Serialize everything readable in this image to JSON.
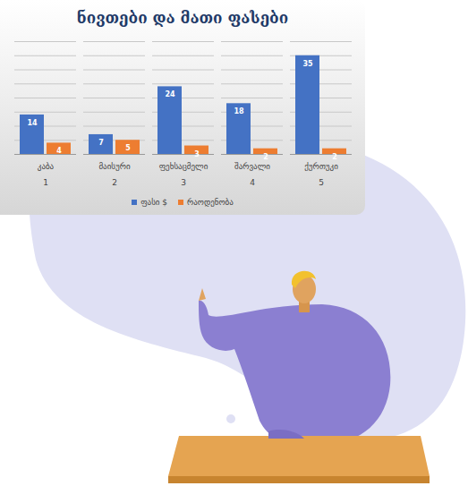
{
  "chart_data": {
    "type": "bar",
    "title": "ნივთები და მათი ფასები",
    "categories": [
      "კაბა",
      "მაისური",
      "ფეხსაცმელი",
      "შარვალი",
      "ქურთუკი"
    ],
    "category_index": [
      1,
      2,
      3,
      4,
      5
    ],
    "series": [
      {
        "name": "ფასი $",
        "color": "#4472c4",
        "values": [
          14,
          7,
          24,
          18,
          35
        ]
      },
      {
        "name": "რაოდენობა",
        "color": "#ed7d31",
        "values": [
          4,
          5,
          3,
          2,
          2
        ]
      }
    ],
    "ylim": [
      0,
      40
    ],
    "yticks": [
      0,
      5,
      10,
      15,
      20,
      25,
      30,
      35,
      40
    ],
    "grid": true,
    "data_labels": true,
    "tick_labels": "x",
    "legend": "bottom"
  }
}
